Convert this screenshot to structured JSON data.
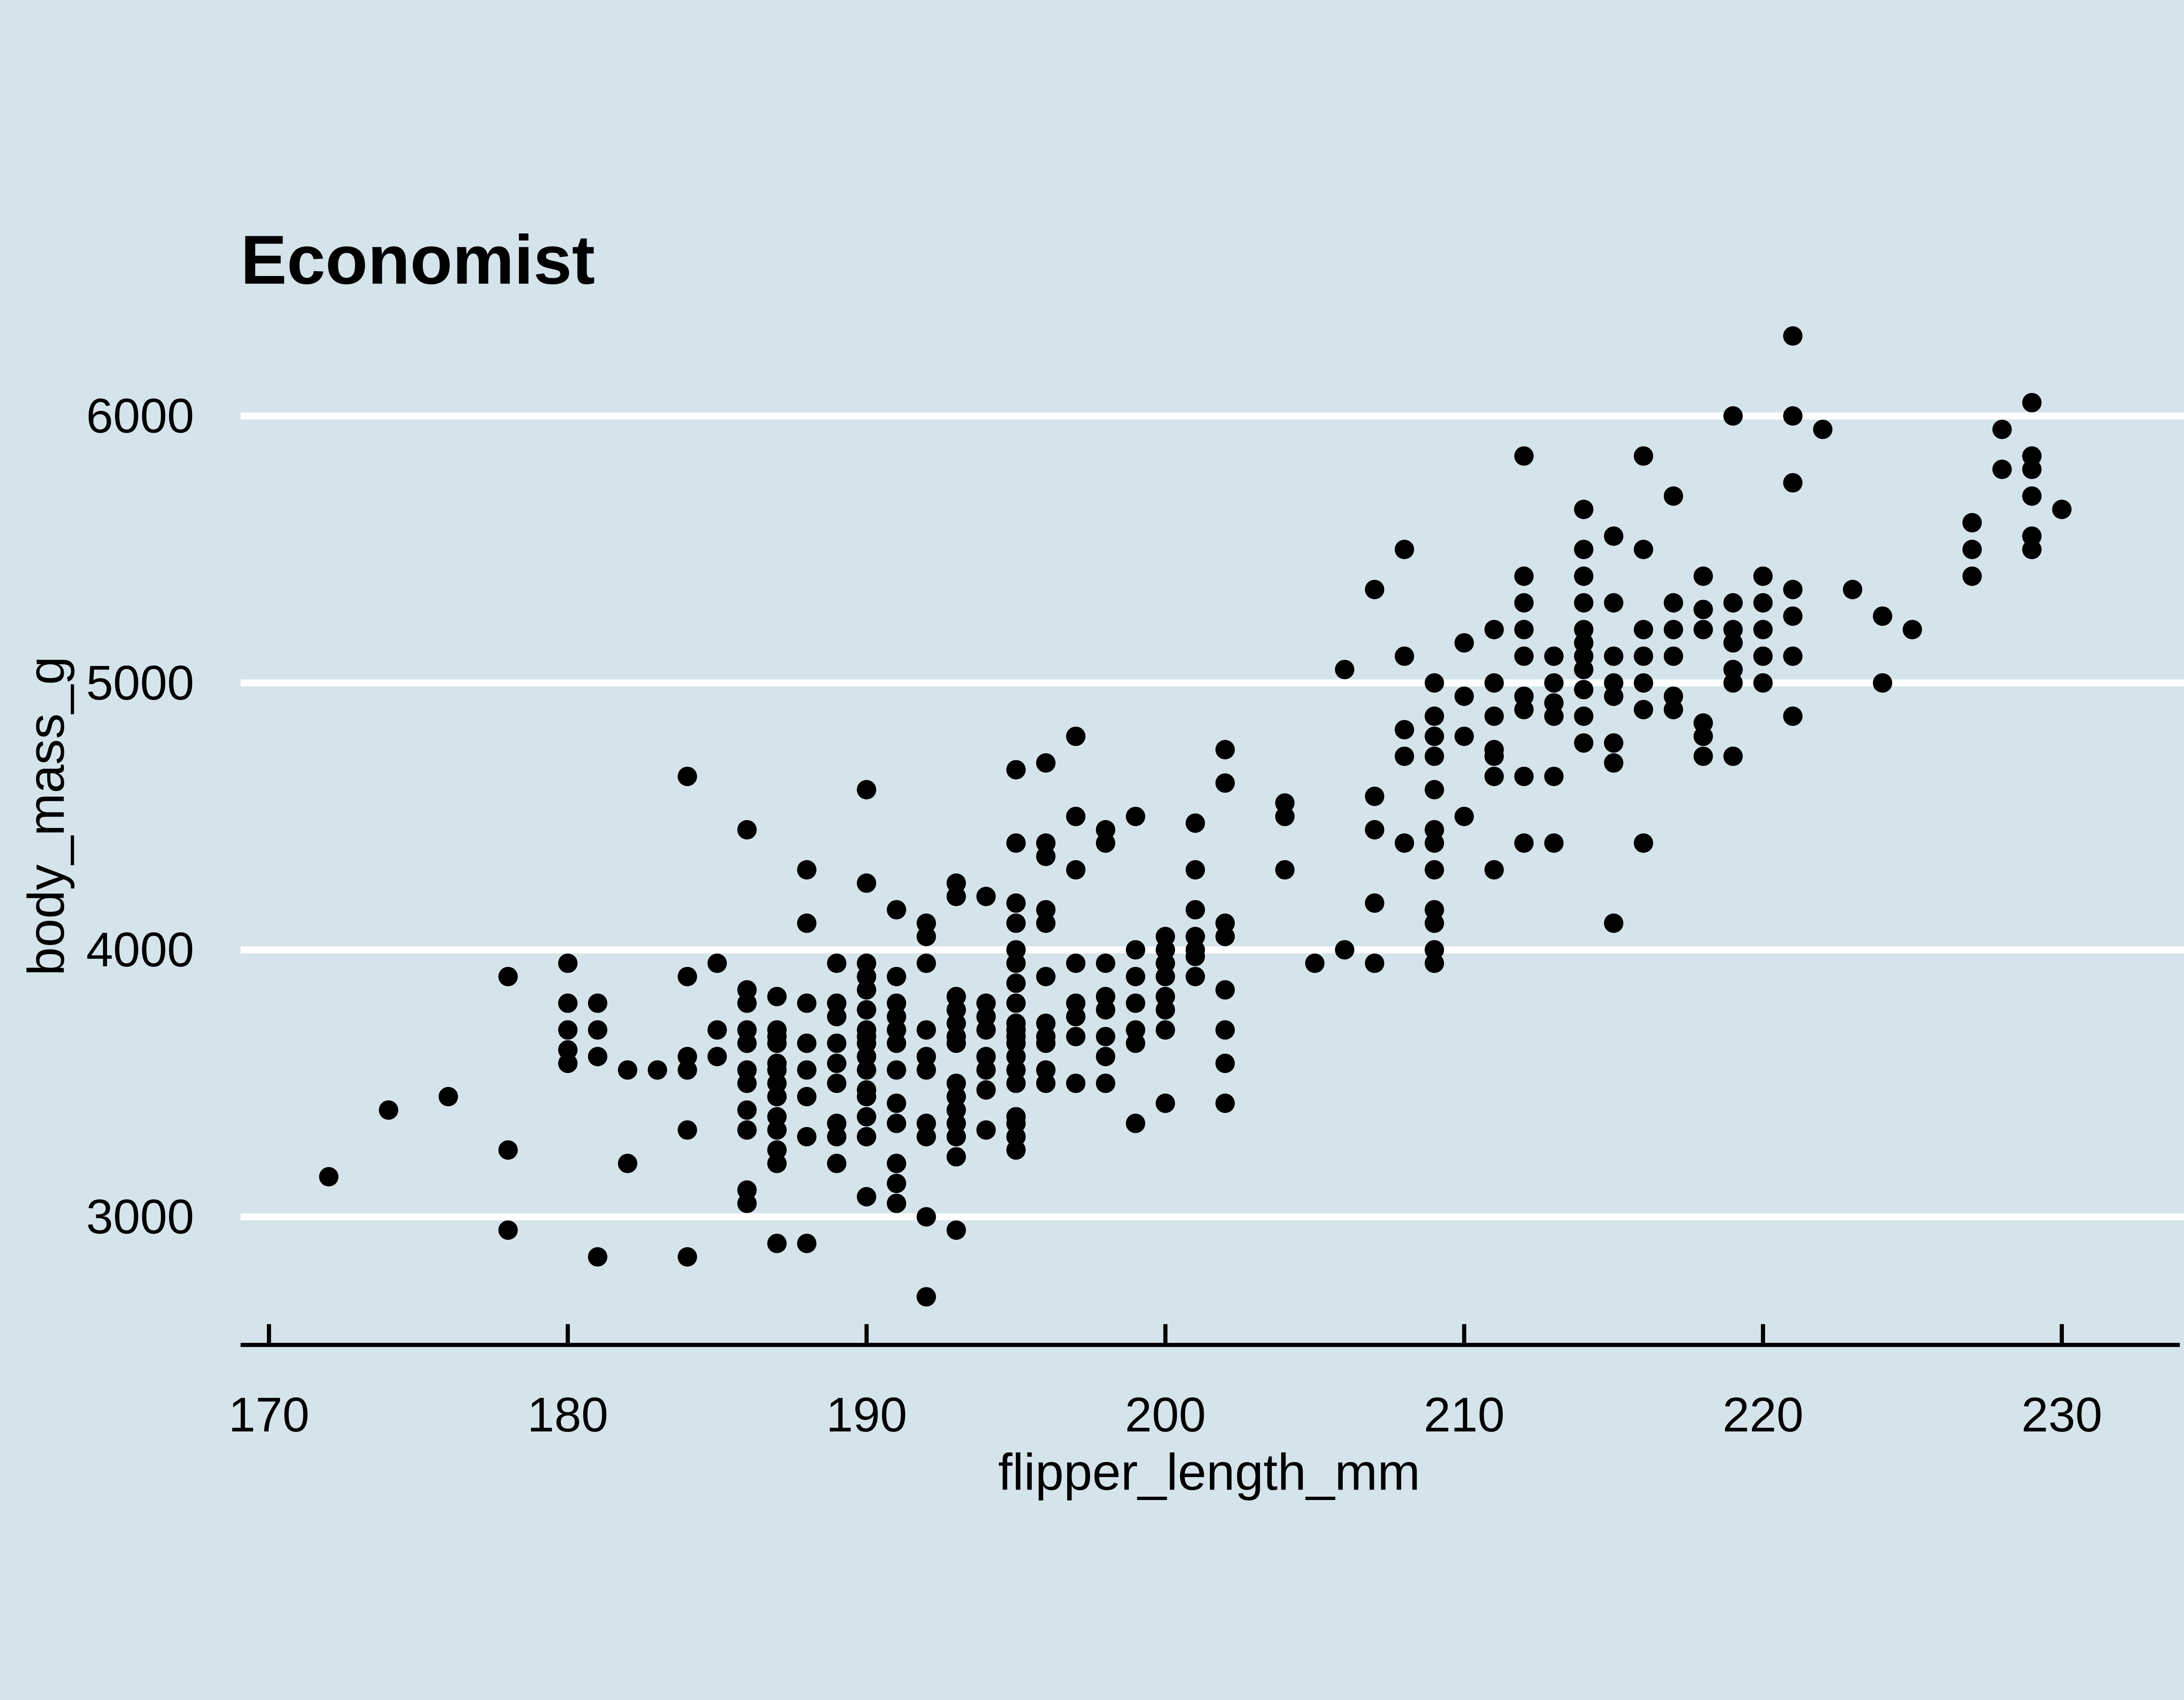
{
  "chart_data": {
    "type": "scatter",
    "title": "Economist",
    "xlabel": "flipper_length_mm",
    "ylabel": "body_mass_g",
    "x_ticks": [
      170,
      180,
      190,
      200,
      210,
      220,
      230
    ],
    "y_ticks": [
      3000,
      4000,
      5000,
      6000
    ],
    "xlim": [
      169.05,
      233.95
    ],
    "ylim": [
      2520,
      6480
    ],
    "grid": "horizontal-white-major-y",
    "legend_position": "none",
    "theme": {
      "name": "economist",
      "background_color": "#d5e4eb",
      "gridline_color": "#ffffff",
      "point_color": "#000000",
      "axis_line_color": "#000000",
      "text_color": "#000000"
    },
    "points": [
      [
        172,
        3150
      ],
      [
        174,
        3400
      ],
      [
        176,
        3450
      ],
      [
        178,
        3250
      ],
      [
        178,
        3900
      ],
      [
        178,
        2950
      ],
      [
        180,
        3950
      ],
      [
        180,
        3800
      ],
      [
        180,
        3700
      ],
      [
        180,
        3625
      ],
      [
        180,
        3575
      ],
      [
        181,
        3800
      ],
      [
        181,
        3700
      ],
      [
        181,
        3600
      ],
      [
        181,
        2850
      ],
      [
        182,
        3200
      ],
      [
        182,
        3550
      ],
      [
        183,
        3550
      ],
      [
        184,
        4650
      ],
      [
        184,
        3900
      ],
      [
        184,
        3600
      ],
      [
        184,
        3550
      ],
      [
        184,
        3325
      ],
      [
        184,
        2850
      ],
      [
        185,
        3950
      ],
      [
        185,
        3700
      ],
      [
        185,
        3600
      ],
      [
        186,
        4450
      ],
      [
        186,
        3850
      ],
      [
        186,
        3800
      ],
      [
        186,
        3700
      ],
      [
        186,
        3650
      ],
      [
        186,
        3550
      ],
      [
        186,
        3500
      ],
      [
        186,
        3400
      ],
      [
        186,
        3325
      ],
      [
        186,
        3100
      ],
      [
        186,
        3050
      ],
      [
        187,
        3825
      ],
      [
        187,
        3700
      ],
      [
        187,
        3675
      ],
      [
        187,
        3650
      ],
      [
        187,
        3575
      ],
      [
        187,
        3550
      ],
      [
        187,
        3500
      ],
      [
        187,
        3450
      ],
      [
        187,
        3450
      ],
      [
        187,
        3375
      ],
      [
        187,
        3325
      ],
      [
        187,
        3250
      ],
      [
        187,
        3200
      ],
      [
        187,
        2900
      ],
      [
        188,
        4300
      ],
      [
        188,
        4100
      ],
      [
        188,
        3800
      ],
      [
        188,
        3650
      ],
      [
        188,
        3550
      ],
      [
        188,
        3450
      ],
      [
        188,
        3300
      ],
      [
        188,
        2900
      ],
      [
        189,
        3950
      ],
      [
        189,
        3800
      ],
      [
        189,
        3750
      ],
      [
        189,
        3650
      ],
      [
        189,
        3575
      ],
      [
        189,
        3500
      ],
      [
        189,
        3350
      ],
      [
        189,
        3300
      ],
      [
        189,
        3200
      ],
      [
        190,
        4600
      ],
      [
        190,
        4250
      ],
      [
        190,
        3950
      ],
      [
        190,
        3900
      ],
      [
        190,
        3850
      ],
      [
        190,
        3775
      ],
      [
        190,
        3700
      ],
      [
        190,
        3675
      ],
      [
        190,
        3650
      ],
      [
        190,
        3600
      ],
      [
        190,
        3550
      ],
      [
        190,
        3475
      ],
      [
        190,
        3450
      ],
      [
        190,
        3375
      ],
      [
        190,
        3300
      ],
      [
        190,
        3075
      ],
      [
        191,
        4150
      ],
      [
        191,
        3900
      ],
      [
        191,
        3800
      ],
      [
        191,
        3750
      ],
      [
        191,
        3700
      ],
      [
        191,
        3650
      ],
      [
        191,
        3550
      ],
      [
        191,
        3425
      ],
      [
        191,
        3350
      ],
      [
        191,
        3200
      ],
      [
        191,
        3125
      ],
      [
        191,
        3050
      ],
      [
        192,
        4100
      ],
      [
        192,
        4050
      ],
      [
        192,
        3950
      ],
      [
        192,
        3700
      ],
      [
        192,
        3600
      ],
      [
        192,
        3550
      ],
      [
        192,
        3350
      ],
      [
        192,
        3300
      ],
      [
        192,
        3000
      ],
      [
        192,
        2700
      ],
      [
        193,
        4250
      ],
      [
        193,
        4200
      ],
      [
        193,
        3825
      ],
      [
        193,
        3775
      ],
      [
        193,
        3725
      ],
      [
        193,
        3675
      ],
      [
        193,
        3650
      ],
      [
        193,
        3500
      ],
      [
        193,
        3450
      ],
      [
        193,
        3400
      ],
      [
        193,
        3350
      ],
      [
        193,
        3300
      ],
      [
        193,
        3225
      ],
      [
        193,
        2950
      ],
      [
        194,
        4200
      ],
      [
        194,
        3800
      ],
      [
        194,
        3750
      ],
      [
        194,
        3700
      ],
      [
        194,
        3600
      ],
      [
        194,
        3550
      ],
      [
        194,
        3475
      ],
      [
        194,
        3325
      ],
      [
        195,
        4675
      ],
      [
        195,
        4400
      ],
      [
        195,
        4175
      ],
      [
        195,
        4100
      ],
      [
        195,
        4000
      ],
      [
        195,
        3950
      ],
      [
        195,
        3875
      ],
      [
        195,
        3800
      ],
      [
        195,
        3725
      ],
      [
        195,
        3700
      ],
      [
        195,
        3675
      ],
      [
        195,
        3650
      ],
      [
        195,
        3600
      ],
      [
        195,
        3550
      ],
      [
        195,
        3500
      ],
      [
        195,
        3375
      ],
      [
        195,
        3350
      ],
      [
        195,
        3300
      ],
      [
        195,
        3250
      ],
      [
        196,
        4700
      ],
      [
        196,
        4400
      ],
      [
        196,
        4350
      ],
      [
        196,
        4150
      ],
      [
        196,
        4100
      ],
      [
        196,
        3900
      ],
      [
        196,
        3725
      ],
      [
        196,
        3675
      ],
      [
        196,
        3650
      ],
      [
        196,
        3550
      ],
      [
        196,
        3500
      ],
      [
        197,
        4800
      ],
      [
        197,
        4500
      ],
      [
        197,
        4300
      ],
      [
        197,
        3950
      ],
      [
        197,
        3800
      ],
      [
        197,
        3750
      ],
      [
        197,
        3675
      ],
      [
        197,
        3500
      ],
      [
        198,
        4450
      ],
      [
        198,
        4400
      ],
      [
        198,
        3950
      ],
      [
        198,
        3825
      ],
      [
        198,
        3775
      ],
      [
        198,
        3675
      ],
      [
        198,
        3600
      ],
      [
        198,
        3500
      ],
      [
        199,
        4500
      ],
      [
        199,
        4000
      ],
      [
        199,
        3900
      ],
      [
        199,
        3800
      ],
      [
        199,
        3700
      ],
      [
        199,
        3650
      ],
      [
        199,
        3350
      ],
      [
        200,
        4050
      ],
      [
        200,
        4000
      ],
      [
        200,
        3950
      ],
      [
        200,
        3900
      ],
      [
        200,
        3825
      ],
      [
        200,
        3775
      ],
      [
        200,
        3700
      ],
      [
        200,
        3425
      ],
      [
        201,
        4475
      ],
      [
        201,
        4300
      ],
      [
        201,
        4150
      ],
      [
        201,
        4050
      ],
      [
        201,
        4000
      ],
      [
        201,
        3975
      ],
      [
        201,
        3900
      ],
      [
        202,
        4750
      ],
      [
        202,
        4625
      ],
      [
        202,
        4100
      ],
      [
        202,
        4050
      ],
      [
        202,
        3850
      ],
      [
        202,
        3700
      ],
      [
        202,
        3575
      ],
      [
        202,
        3425
      ],
      [
        204,
        4550
      ],
      [
        204,
        4500
      ],
      [
        204,
        4300
      ],
      [
        205,
        3950
      ],
      [
        206,
        5050
      ],
      [
        206,
        4000
      ],
      [
        207,
        5350
      ],
      [
        207,
        4575
      ],
      [
        207,
        4450
      ],
      [
        207,
        4175
      ],
      [
        207,
        3950
      ],
      [
        208,
        5500
      ],
      [
        208,
        5100
      ],
      [
        208,
        4825
      ],
      [
        208,
        4725
      ],
      [
        208,
        4400
      ],
      [
        209,
        5000
      ],
      [
        209,
        4875
      ],
      [
        209,
        4800
      ],
      [
        209,
        4725
      ],
      [
        209,
        4600
      ],
      [
        209,
        4450
      ],
      [
        209,
        4400
      ],
      [
        209,
        4300
      ],
      [
        209,
        4150
      ],
      [
        209,
        4100
      ],
      [
        209,
        4000
      ],
      [
        209,
        3950
      ],
      [
        210,
        5150
      ],
      [
        210,
        4950
      ],
      [
        210,
        4800
      ],
      [
        210,
        4500
      ],
      [
        211,
        5200
      ],
      [
        211,
        5000
      ],
      [
        211,
        4875
      ],
      [
        211,
        4750
      ],
      [
        211,
        4725
      ],
      [
        211,
        4650
      ],
      [
        211,
        4300
      ],
      [
        212,
        5850
      ],
      [
        212,
        5400
      ],
      [
        212,
        5300
      ],
      [
        212,
        5200
      ],
      [
        212,
        5100
      ],
      [
        212,
        4950
      ],
      [
        212,
        4900
      ],
      [
        212,
        4650
      ],
      [
        212,
        4400
      ],
      [
        213,
        5100
      ],
      [
        213,
        5000
      ],
      [
        213,
        4925
      ],
      [
        213,
        4875
      ],
      [
        213,
        4650
      ],
      [
        213,
        4400
      ],
      [
        214,
        5650
      ],
      [
        214,
        5500
      ],
      [
        214,
        5400
      ],
      [
        214,
        5300
      ],
      [
        214,
        5200
      ],
      [
        214,
        5150
      ],
      [
        214,
        5100
      ],
      [
        214,
        5050
      ],
      [
        214,
        4975
      ],
      [
        214,
        4875
      ],
      [
        214,
        4775
      ],
      [
        215,
        5550
      ],
      [
        215,
        5300
      ],
      [
        215,
        5100
      ],
      [
        215,
        5000
      ],
      [
        215,
        4950
      ],
      [
        215,
        4775
      ],
      [
        215,
        4700
      ],
      [
        215,
        4100
      ],
      [
        216,
        5850
      ],
      [
        216,
        5500
      ],
      [
        216,
        5200
      ],
      [
        216,
        5100
      ],
      [
        216,
        5000
      ],
      [
        216,
        4900
      ],
      [
        216,
        4400
      ],
      [
        217,
        5700
      ],
      [
        217,
        5300
      ],
      [
        217,
        5200
      ],
      [
        217,
        5100
      ],
      [
        217,
        4950
      ],
      [
        217,
        4900
      ],
      [
        218,
        5400
      ],
      [
        218,
        5275
      ],
      [
        218,
        5200
      ],
      [
        218,
        4850
      ],
      [
        218,
        4800
      ],
      [
        218,
        4725
      ],
      [
        219,
        6000
      ],
      [
        219,
        5300
      ],
      [
        219,
        5200
      ],
      [
        219,
        5150
      ],
      [
        219,
        5050
      ],
      [
        219,
        5000
      ],
      [
        219,
        4725
      ],
      [
        220,
        5400
      ],
      [
        220,
        5300
      ],
      [
        220,
        5200
      ],
      [
        220,
        5100
      ],
      [
        220,
        5000
      ],
      [
        221,
        6300
      ],
      [
        221,
        6000
      ],
      [
        221,
        5750
      ],
      [
        221,
        5350
      ],
      [
        221,
        5250
      ],
      [
        221,
        5100
      ],
      [
        221,
        4875
      ],
      [
        222,
        5950
      ],
      [
        223,
        5350
      ],
      [
        224,
        5250
      ],
      [
        224,
        5000
      ],
      [
        225,
        5200
      ],
      [
        227,
        5600
      ],
      [
        227,
        5500
      ],
      [
        227,
        5400
      ],
      [
        228,
        5950
      ],
      [
        228,
        5800
      ],
      [
        229,
        6050
      ],
      [
        229,
        5850
      ],
      [
        229,
        5800
      ],
      [
        229,
        5700
      ],
      [
        229,
        5550
      ],
      [
        229,
        5500
      ],
      [
        230,
        5650
      ]
    ]
  }
}
